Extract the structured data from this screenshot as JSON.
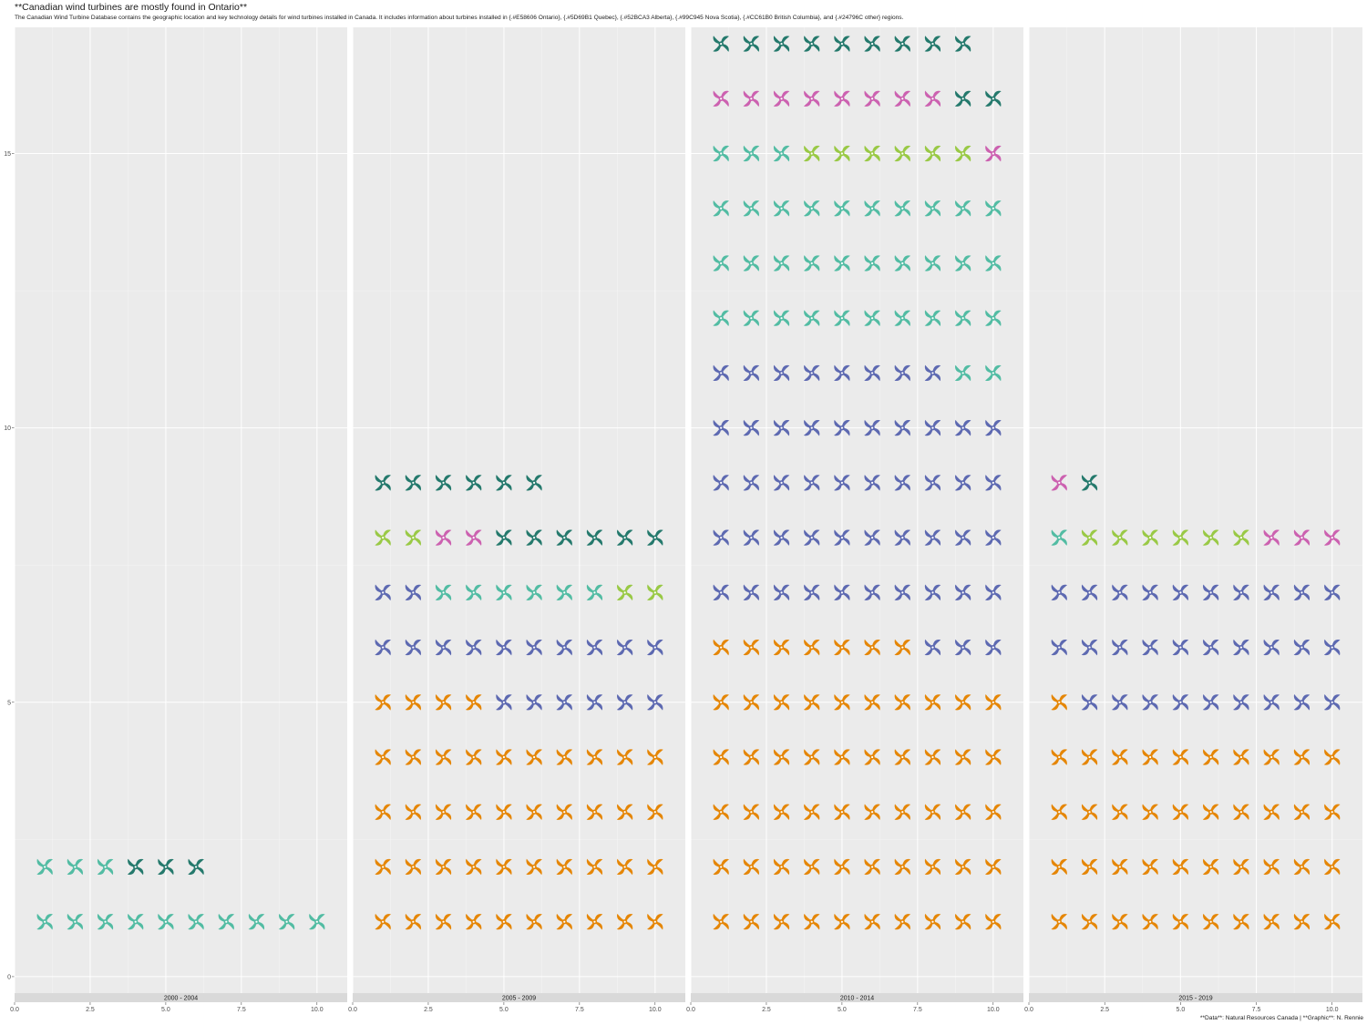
{
  "title": "**Canadian wind turbines are mostly found in Ontario**",
  "subtitle": "The Canadian Wind Turbine Database contains the geographic location and key technology details for wind turbines installed in Canada. It includes information about turbines installed in {.#E58606 Ontario}, {.#5D69B1 Quebec}, {.#52BCA3 Alberta}, {.#99C945 Nova Scotia}, {.#CC61B0 British Columbia}, and {.#24796C other} regions.",
  "caption": "**Data**: Natural Resources Canada | **Graphic**: N. Rennie",
  "chart_data": {
    "type": "waffle-pictogram",
    "icon": "wind-turbine-icon",
    "colors": {
      "Ontario": "#E58606",
      "Quebec": "#5D69B1",
      "Alberta": "#52BCA3",
      "Nova Scotia": "#99C945",
      "British Columbia": "#CC61B0",
      "Other": "#24796C"
    },
    "x_ticks": [
      0.0,
      2.5,
      5.0,
      7.5,
      10.0
    ],
    "x_tick_labels": [
      "0.0",
      "2.5",
      "5.0",
      "7.5",
      "10.0"
    ],
    "xlim": [
      0,
      11
    ],
    "y_ticks": [
      0,
      5,
      10,
      15
    ],
    "y_tick_labels": [
      "0",
      "5",
      "10",
      "15"
    ],
    "ylim": [
      -0.3,
      17.3
    ],
    "grid": true,
    "facets": [
      {
        "label": "2000 - 2004",
        "counts": {
          "Ontario": 0,
          "Quebec": 0,
          "Alberta": 13,
          "Nova Scotia": 0,
          "British Columbia": 0,
          "Other": 3
        }
      },
      {
        "label": "2005 - 2009",
        "counts": {
          "Ontario": 44,
          "Quebec": 18,
          "Alberta": 6,
          "Nova Scotia": 4,
          "British Columbia": 2,
          "Other": 12
        }
      },
      {
        "label": "2010 - 2014",
        "counts": {
          "Ontario": 57,
          "Quebec": 51,
          "Alberta": 35,
          "Nova Scotia": 6,
          "British Columbia": 9,
          "Other": 11
        }
      },
      {
        "label": "2015 - 2019",
        "counts": {
          "Ontario": 41,
          "Quebec": 29,
          "Alberta": 1,
          "Nova Scotia": 6,
          "British Columbia": 4,
          "Other": 1
        }
      }
    ]
  }
}
